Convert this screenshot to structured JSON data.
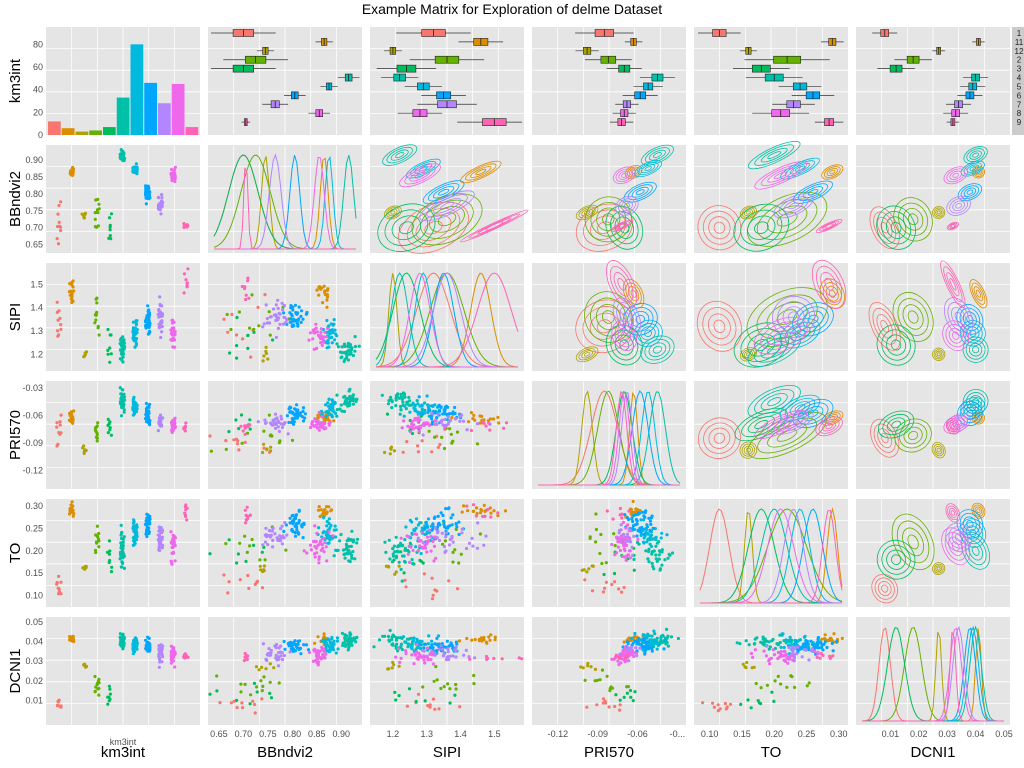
{
  "chart_data": {
    "type": "scatterplot-matrix",
    "title": "Example Matrix for Exploration of delme Dataset",
    "variables": [
      "km3int",
      "BBndvi2",
      "SIPI",
      "PRI570",
      "TO",
      "DCNI1"
    ],
    "x_axis_labels": [
      "km3int",
      "BBndvi2",
      "SIPI",
      "PRI570",
      "TO",
      "DCNI1"
    ],
    "y_axis_labels": [
      "km3int",
      "BBndvi2",
      "SIPI",
      "PRI570",
      "TO",
      "DCNI1"
    ],
    "inner_label": "km3int",
    "groups": [
      "1",
      "11",
      "12",
      "2",
      "3",
      "4",
      "5",
      "6",
      "7",
      "8",
      "9"
    ],
    "group_colors": [
      "#F8766D",
      "#DB8E00",
      "#AEA200",
      "#64B200",
      "#00BD5C",
      "#00C1A7",
      "#00BADE",
      "#00A6FF",
      "#B385FF",
      "#EF67EB",
      "#FF63B6"
    ],
    "histogram_counts": [
      12,
      6,
      3,
      4,
      7,
      33,
      80,
      46,
      28,
      45,
      7
    ],
    "histogram_ticks": [
      "0",
      "20",
      "40",
      "60",
      "80"
    ],
    "ranges": {
      "km3int": [
        0,
        12
      ],
      "BBndvi2": [
        0.64,
        0.93
      ],
      "SIPI": [
        1.15,
        1.57
      ],
      "PRI570": [
        -0.135,
        -0.028
      ],
      "TO": [
        0.085,
        0.305
      ],
      "DCNI1": [
        0.0,
        0.05
      ]
    },
    "ticks": {
      "BBndvi2": [
        "0.65",
        "0.70",
        "0.75",
        "0.80",
        "0.85",
        "0.90"
      ],
      "SIPI": [
        "1.2",
        "1.3",
        "1.4",
        "1.5"
      ],
      "PRI570": [
        "-0.12",
        "-0.09",
        "-0.06",
        "-0.03"
      ],
      "TO": [
        "0.10",
        "0.15",
        "0.20",
        "0.25",
        "0.30"
      ],
      "DCNI1": [
        "0.01",
        "0.02",
        "0.03",
        "0.04",
        "0.05"
      ]
    },
    "x_tick_labels": {
      "BBndvi2": [
        "0.65",
        "0.70",
        "0.75",
        "0.80",
        "0.85",
        "0.90"
      ],
      "SIPI": [
        "1.2",
        "1.3",
        "1.4",
        "1.5"
      ],
      "PRI570": [
        "-0.12",
        "-0.09",
        "-0.06",
        "-0..."
      ],
      "TO": [
        "0.10",
        "0.15",
        "0.20",
        "0.25",
        "0.30"
      ],
      "DCNI1": [
        "0.01",
        "0.02",
        "0.03",
        "0.04",
        "0.05"
      ]
    },
    "group_means": {
      "BBndvi2": [
        0.7,
        0.865,
        0.745,
        0.725,
        0.7,
        0.915,
        0.875,
        0.805,
        0.765,
        0.855,
        0.705
      ],
      "SIPI": [
        1.32,
        1.46,
        1.2,
        1.36,
        1.24,
        1.22,
        1.29,
        1.35,
        1.36,
        1.28,
        1.5
      ],
      "PRI570": [
        -0.085,
        -0.063,
        -0.098,
        -0.082,
        -0.07,
        -0.045,
        -0.052,
        -0.058,
        -0.068,
        -0.07,
        -0.072
      ],
      "TO": [
        0.115,
        0.29,
        0.16,
        0.22,
        0.18,
        0.2,
        0.24,
        0.26,
        0.23,
        0.21,
        0.285
      ],
      "DCNI1": [
        0.008,
        0.041,
        0.027,
        0.018,
        0.012,
        0.04,
        0.039,
        0.038,
        0.034,
        0.033,
        0.032
      ]
    },
    "group_sds": {
      "BBndvi2": [
        0.03,
        0.008,
        0.008,
        0.03,
        0.03,
        0.01,
        0.008,
        0.01,
        0.012,
        0.01,
        0.004
      ],
      "SIPI": [
        0.05,
        0.03,
        0.012,
        0.05,
        0.04,
        0.025,
        0.025,
        0.03,
        0.04,
        0.03,
        0.05
      ],
      "PRI570": [
        0.01,
        0.003,
        0.004,
        0.008,
        0.006,
        0.006,
        0.005,
        0.006,
        0.004,
        0.004,
        0.004
      ],
      "TO": [
        0.015,
        0.008,
        0.006,
        0.03,
        0.02,
        0.02,
        0.015,
        0.015,
        0.015,
        0.02,
        0.01
      ],
      "DCNI1": [
        0.002,
        0.001,
        0.001,
        0.003,
        0.003,
        0.002,
        0.002,
        0.002,
        0.002,
        0.002,
        0.001
      ]
    },
    "grid": true,
    "background": "#E5E5E5"
  }
}
